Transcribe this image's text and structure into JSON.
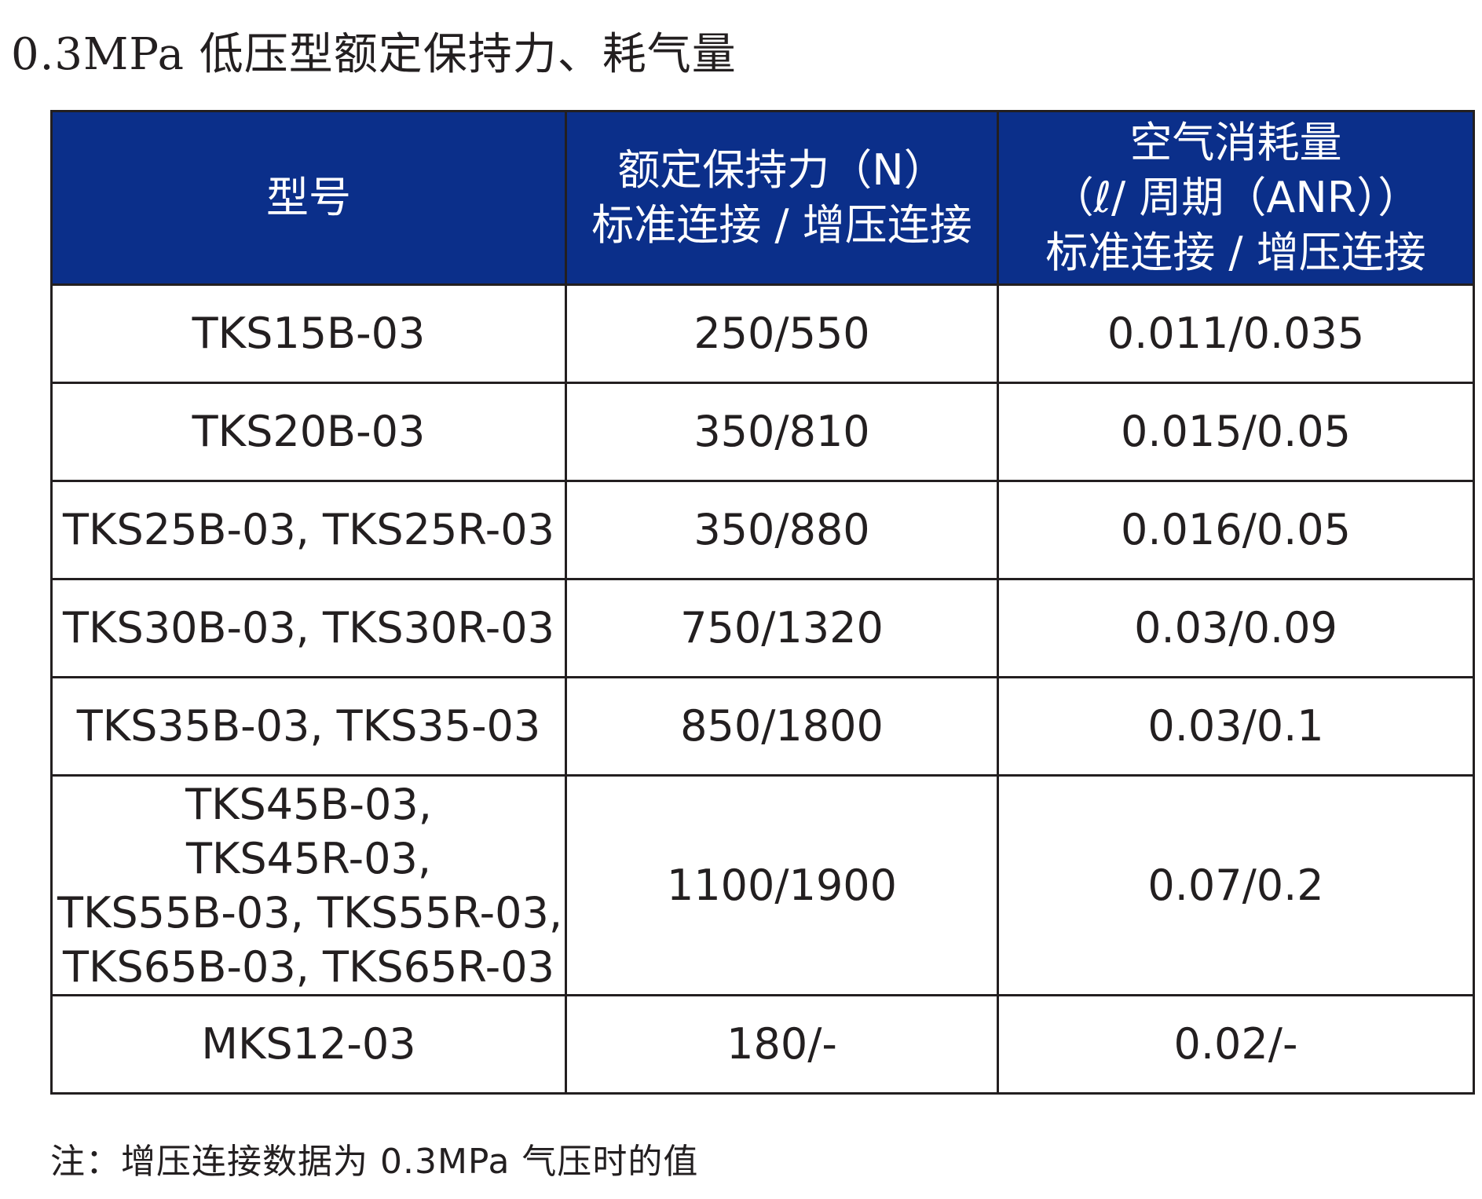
{
  "title": "0.3MPa 低压型额定保持力、耗气量",
  "table": {
    "header_color": "#0b2f8a",
    "headers": [
      {
        "lines": [
          "型号"
        ]
      },
      {
        "lines": [
          "额定保持力（N）",
          "标准连接 / 增压连接"
        ]
      },
      {
        "lines": [
          "空气消耗量",
          "（ℓ/ 周期（ANR））",
          "标准连接 / 增压连接"
        ]
      }
    ],
    "rows": [
      {
        "model": [
          "TKS15B-03"
        ],
        "force": "250/550",
        "air": "0.011/0.035"
      },
      {
        "model": [
          "TKS20B-03"
        ],
        "force": "350/810",
        "air": "0.015/0.05"
      },
      {
        "model": [
          "TKS25B-03, TKS25R-03"
        ],
        "force": "350/880",
        "air": "0.016/0.05"
      },
      {
        "model": [
          "TKS30B-03, TKS30R-03"
        ],
        "force": "750/1320",
        "air": "0.03/0.09"
      },
      {
        "model": [
          "TKS35B-03, TKS35-03"
        ],
        "force": "850/1800",
        "air": "0.03/0.1"
      },
      {
        "model": [
          "TKS45B-03,",
          "TKS45R-03,",
          "TKS55B-03, TKS55R-03,",
          "TKS65B-03, TKS65R-03"
        ],
        "force": "1100/1900",
        "air": "0.07/0.2"
      },
      {
        "model": [
          "MKS12-03"
        ],
        "force": "180/-",
        "air": "0.02/-"
      }
    ]
  },
  "footnote": "注：增压连接数据为 0.3MPa 气压时的值"
}
